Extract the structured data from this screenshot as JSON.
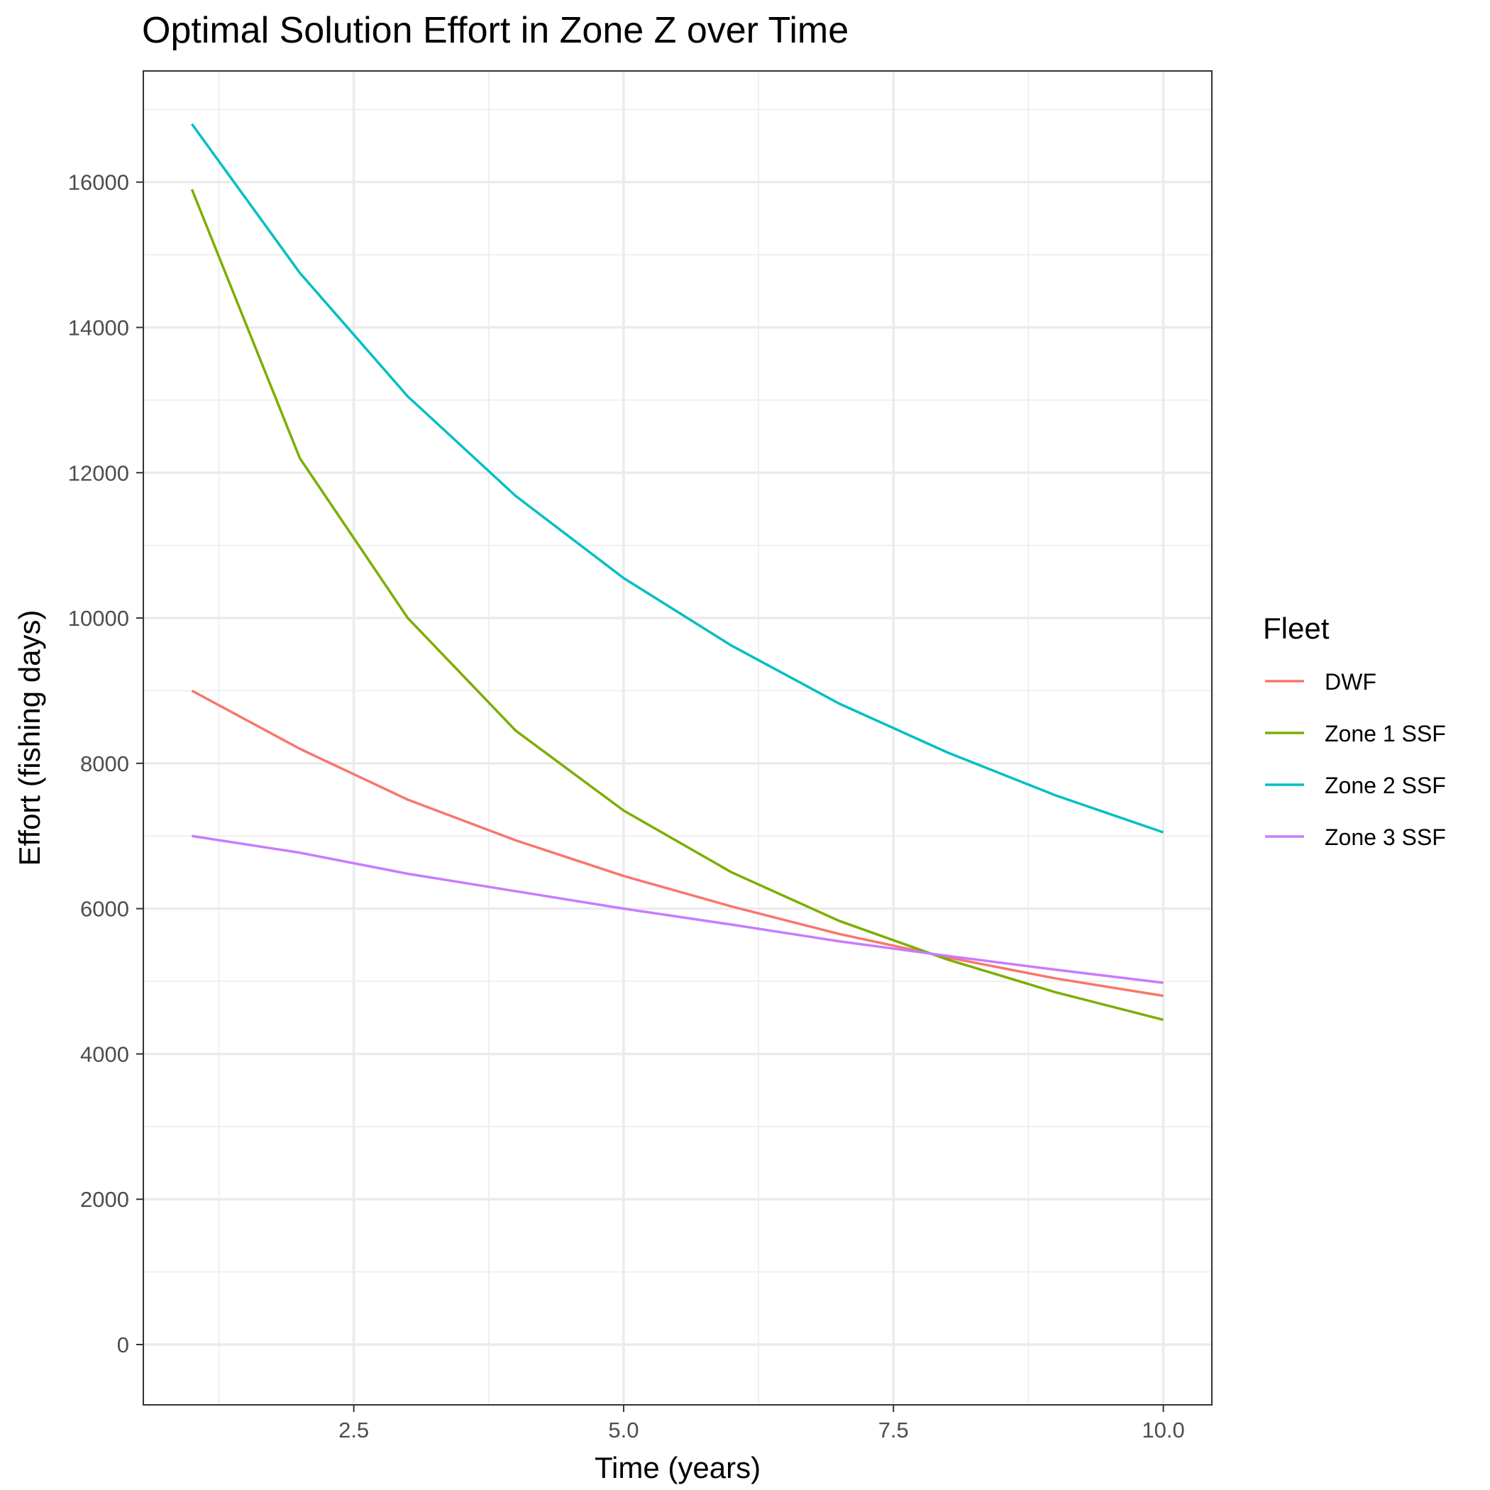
{
  "chart_data": {
    "type": "line",
    "title": "Optimal Solution Effort in Zone Z over Time",
    "xlabel": "Time (years)",
    "ylabel": "Effort (fishing days)",
    "xlim": [
      0.55,
      10.45
    ],
    "ylim": [
      -830,
      17530
    ],
    "x_ticks": [
      2.5,
      5.0,
      7.5,
      10.0
    ],
    "x_tick_labels": [
      "2.5",
      "5.0",
      "7.5",
      "10.0"
    ],
    "x_minor_ticks": [
      1.25,
      3.75,
      6.25,
      8.75
    ],
    "y_ticks": [
      0,
      2000,
      4000,
      6000,
      8000,
      10000,
      12000,
      14000,
      16000
    ],
    "y_tick_labels": [
      "0",
      "2000",
      "4000",
      "6000",
      "8000",
      "10000",
      "12000",
      "14000",
      "16000"
    ],
    "y_minor_ticks": [
      1000,
      3000,
      5000,
      7000,
      9000,
      11000,
      13000,
      15000,
      17000
    ],
    "grid": true,
    "legend": {
      "title": "Fleet",
      "position": "right"
    },
    "x": [
      1,
      2,
      3,
      4,
      5,
      6,
      7,
      8,
      9,
      10
    ],
    "series": [
      {
        "name": "DWF",
        "color": "#F8766D",
        "values": [
          9000,
          8200,
          7500,
          6940,
          6450,
          6030,
          5650,
          5330,
          5040,
          4800
        ]
      },
      {
        "name": "Zone 1 SSF",
        "color": "#7CAE00",
        "values": [
          15900,
          12200,
          10000,
          8450,
          7350,
          6500,
          5830,
          5300,
          4850,
          4470
        ]
      },
      {
        "name": "Zone 2 SSF",
        "color": "#00BFC4",
        "values": [
          16800,
          14750,
          13050,
          11680,
          10550,
          9620,
          8820,
          8150,
          7560,
          7050
        ]
      },
      {
        "name": "Zone 3 SSF",
        "color": "#C77CFF",
        "values": [
          7000,
          6770,
          6480,
          6240,
          6000,
          5780,
          5550,
          5350,
          5160,
          4980
        ]
      }
    ]
  }
}
